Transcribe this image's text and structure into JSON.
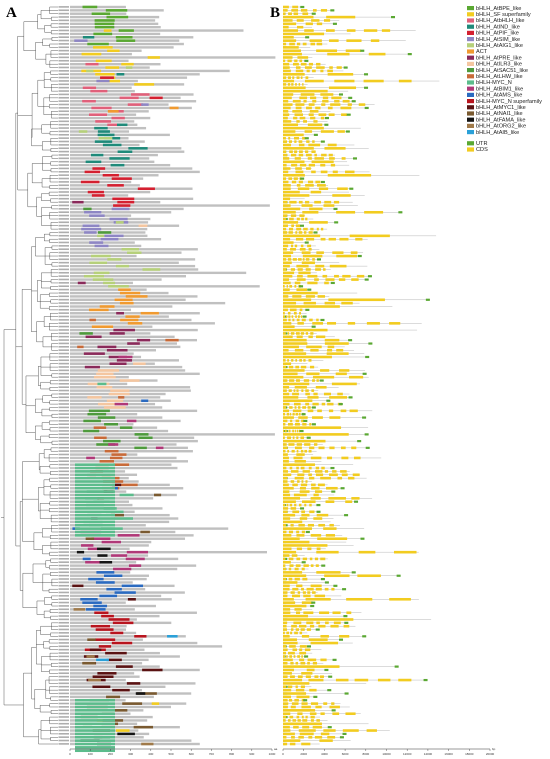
{
  "figure": {
    "panel_a_label": "A",
    "panel_b_label": "B",
    "gene_count": 220,
    "colors": {
      "protein_bar": "#c0c0c0",
      "tree_line": "#333333",
      "intron_line": "#9a9a9a"
    }
  },
  "legend": {
    "domains": [
      {
        "label": "bHLH_AtBPE_like",
        "color": "#5aa832"
      },
      {
        "label": "bHLH_SF superfamily",
        "color": "#f2cc20"
      },
      {
        "label": "bHLH_AtbHLH_like",
        "color": "#e0607a"
      },
      {
        "label": "bHLH_AtIND_like",
        "color": "#1f8a7a"
      },
      {
        "label": "bHLH_AtPIF_like",
        "color": "#d42030"
      },
      {
        "label": "bHLH_AtSIM_like",
        "color": "#8e86c4"
      },
      {
        "label": "bHLH_AtAIG1_like",
        "color": "#b6d07a"
      },
      {
        "label": "ACT",
        "color": "#f09a30"
      },
      {
        "label": "bHLH_AtPRE_like",
        "color": "#8a2a5a"
      },
      {
        "label": "bHLH_AtILR3_like",
        "color": "#f4c6a0"
      },
      {
        "label": "bHLH_AtSAC51_like",
        "color": "#4e9a3c"
      },
      {
        "label": "bHLH_AtLHW_like",
        "color": "#c86a38"
      },
      {
        "label": "bHLH-MYC_N",
        "color": "#5cbc8c"
      },
      {
        "label": "bHLH_AtBIM1_like",
        "color": "#b03878"
      },
      {
        "label": "bHLH_AtAMS_like",
        "color": "#2a6ac0"
      },
      {
        "label": "bHLH-MYC_N superfamily",
        "color": "#b8141e"
      },
      {
        "label": "bHLH_AtMYC1_like",
        "color": "#5a1212"
      },
      {
        "label": "bHLH_AtNAI1_like",
        "color": "#7a5a30"
      },
      {
        "label": "bHLH_AtFAMA_like",
        "color": "#141414"
      },
      {
        "label": "bHLH_AtORG2_like",
        "color": "#a07a4a"
      },
      {
        "label": "bHLH_AtAIB_like",
        "color": "#2aa0d8"
      }
    ],
    "structures": [
      {
        "label": "UTR",
        "color": "#5aa832"
      },
      {
        "label": "CDS",
        "color": "#f2cc20"
      }
    ]
  },
  "axis_a": {
    "unit": "aa",
    "ticks": [
      "0",
      "100",
      "200",
      "300",
      "400",
      "500",
      "600",
      "700",
      "800",
      "900",
      "1000"
    ]
  },
  "axis_b": {
    "unit": "bp",
    "ticks": [
      "0",
      "2000",
      "4000",
      "6000",
      "8000",
      "10000",
      "12000",
      "14000",
      "16000",
      "18000",
      "20000"
    ]
  }
}
